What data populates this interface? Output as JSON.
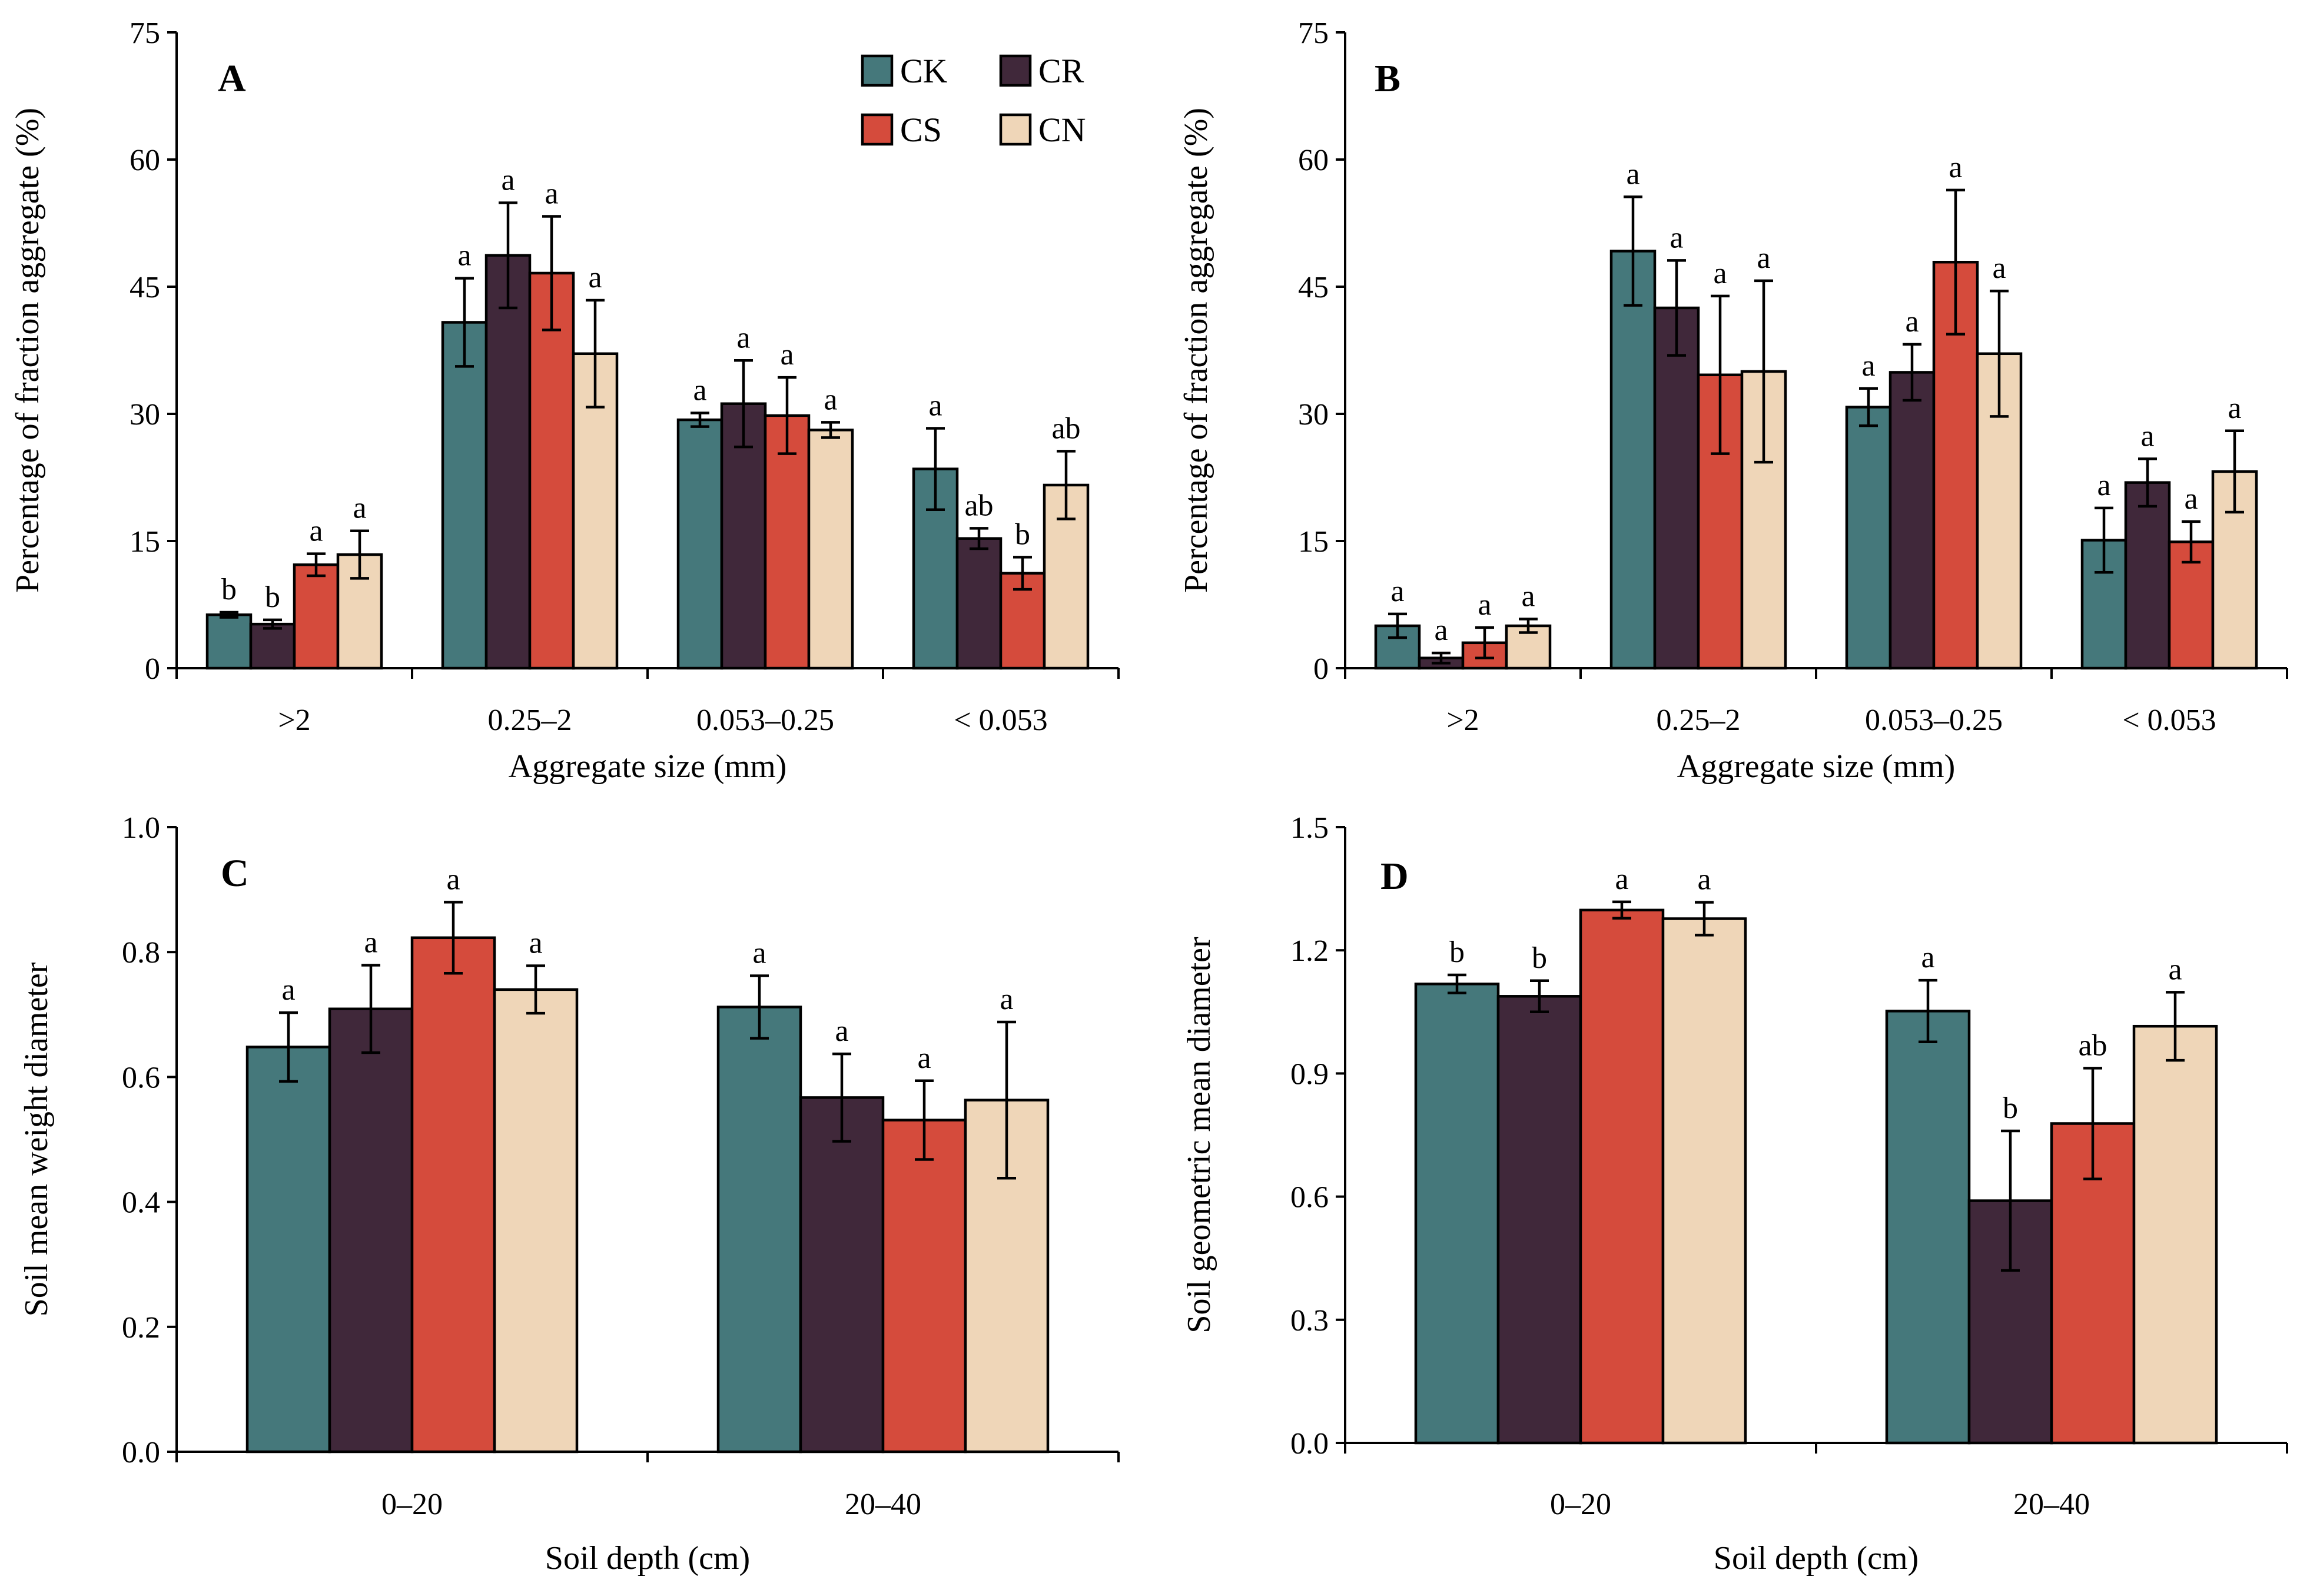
{
  "series_colors": {
    "CK": "#45787b",
    "CR": "#40283a",
    "CS": "#d54b3c",
    "CN": "#efd6b8"
  },
  "legend": {
    "items": [
      "CK",
      "CR",
      "CS",
      "CN"
    ]
  },
  "chart_data": [
    {
      "panel": "A",
      "type": "bar",
      "categories": [
        ">2",
        "0.25–2",
        "0.053–0.25",
        "< 0.053"
      ],
      "xlabel": "Aggregate  size (mm)",
      "ylabel": "Percentage of fraction aggregate  (%)",
      "ylim": [
        0,
        75
      ],
      "yticks": [
        "0",
        "15",
        "30",
        "45",
        "60",
        "75"
      ],
      "series": [
        {
          "name": "CK",
          "values": [
            6.3,
            40.8,
            29.3,
            23.5
          ],
          "errors": [
            0.3,
            5.2,
            0.8,
            4.8
          ],
          "letters": [
            "b",
            "a",
            "a",
            "a"
          ]
        },
        {
          "name": "CR",
          "values": [
            5.2,
            48.7,
            31.2,
            15.3
          ],
          "errors": [
            0.5,
            6.2,
            5.1,
            1.2
          ],
          "letters": [
            "b",
            "a",
            "a",
            "ab"
          ]
        },
        {
          "name": "CS",
          "values": [
            12.2,
            46.6,
            29.8,
            11.2
          ],
          "errors": [
            1.3,
            6.7,
            4.5,
            1.9
          ],
          "letters": [
            "a",
            "a",
            "a",
            "b"
          ]
        },
        {
          "name": "CN",
          "values": [
            13.4,
            37.1,
            28.1,
            21.6
          ],
          "errors": [
            2.8,
            6.3,
            0.9,
            4.0
          ],
          "letters": [
            "a",
            "a",
            "a",
            "ab"
          ]
        }
      ]
    },
    {
      "panel": "B",
      "type": "bar",
      "categories": [
        ">2",
        "0.25–2",
        "0.053–0.25",
        "< 0.053"
      ],
      "xlabel": "Aggregate  size (mm)",
      "ylabel": "Percentage of fraction aggregate  (%)",
      "ylim": [
        0,
        75
      ],
      "yticks": [
        "0",
        "15",
        "30",
        "45",
        "60",
        "75"
      ],
      "series": [
        {
          "name": "CK",
          "values": [
            5.0,
            49.2,
            30.8,
            15.1
          ],
          "errors": [
            1.4,
            6.4,
            2.2,
            3.8
          ],
          "letters": [
            "a",
            "a",
            "a",
            "a"
          ]
        },
        {
          "name": "CR",
          "values": [
            1.2,
            42.5,
            34.9,
            21.9
          ],
          "errors": [
            0.6,
            5.6,
            3.3,
            2.8
          ],
          "letters": [
            "a",
            "a",
            "a",
            "a"
          ]
        },
        {
          "name": "CS",
          "values": [
            3.0,
            34.6,
            47.9,
            14.9
          ],
          "errors": [
            1.8,
            9.3,
            8.5,
            2.4
          ],
          "letters": [
            "a",
            "a",
            "a",
            "a"
          ]
        },
        {
          "name": "CN",
          "values": [
            5.0,
            35.0,
            37.1,
            23.2
          ],
          "errors": [
            0.8,
            10.7,
            7.4,
            4.8
          ],
          "letters": [
            "a",
            "a",
            "a",
            "a"
          ]
        }
      ]
    },
    {
      "panel": "C",
      "type": "bar",
      "categories": [
        "0–20",
        "20–40"
      ],
      "xlabel": "Soil depth (cm)",
      "ylabel": "Soil mean weight  diameter",
      "ylim": [
        0,
        1.0
      ],
      "yticks": [
        "0.0",
        "0.2",
        "0.4",
        "0.6",
        "0.8",
        "1.0"
      ],
      "series": [
        {
          "name": "CK",
          "values": [
            0.648,
            0.712
          ],
          "errors": [
            0.055,
            0.05
          ],
          "letters": [
            "a",
            "a"
          ]
        },
        {
          "name": "CR",
          "values": [
            0.709,
            0.567
          ],
          "errors": [
            0.07,
            0.07
          ],
          "letters": [
            "a",
            "a"
          ]
        },
        {
          "name": "CS",
          "values": [
            0.823,
            0.531
          ],
          "errors": [
            0.057,
            0.063
          ],
          "letters": [
            "a",
            "a"
          ]
        },
        {
          "name": "CN",
          "values": [
            0.74,
            0.563
          ],
          "errors": [
            0.038,
            0.125
          ],
          "letters": [
            "a",
            "a"
          ]
        }
      ]
    },
    {
      "panel": "D",
      "type": "bar",
      "categories": [
        "0–20",
        "20–40"
      ],
      "xlabel": "Soil depth (cm)",
      "ylabel": "Soil geometric  mean diameter",
      "ylim": [
        0,
        1.5
      ],
      "yticks": [
        "0.0",
        "0.3",
        "0.6",
        "0.9",
        "1.2",
        "1.5"
      ],
      "series": [
        {
          "name": "CK",
          "values": [
            1.118,
            1.052
          ],
          "errors": [
            0.022,
            0.075
          ],
          "letters": [
            "b",
            "a"
          ]
        },
        {
          "name": "CR",
          "values": [
            1.088,
            0.59
          ],
          "errors": [
            0.038,
            0.17
          ],
          "letters": [
            "b",
            "b"
          ]
        },
        {
          "name": "CS",
          "values": [
            1.298,
            0.778
          ],
          "errors": [
            0.02,
            0.135
          ],
          "letters": [
            "a",
            "ab"
          ]
        },
        {
          "name": "CN",
          "values": [
            1.277,
            1.015
          ],
          "errors": [
            0.04,
            0.083
          ],
          "letters": [
            "a",
            "a"
          ]
        }
      ]
    }
  ]
}
